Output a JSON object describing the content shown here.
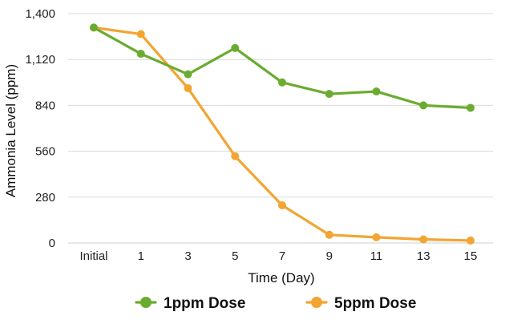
{
  "chart_data": {
    "type": "line",
    "title": "",
    "xlabel": "Time (Day)",
    "ylabel": "Ammonia Level (ppm)",
    "categories": [
      "Initial",
      "1",
      "3",
      "5",
      "7",
      "9",
      "11",
      "13",
      "15"
    ],
    "yticks": [
      "0",
      "280",
      "560",
      "840",
      "1,120",
      "1,400"
    ],
    "ylim": [
      0,
      1400
    ],
    "grid": true,
    "legend_position": "bottom",
    "series": [
      {
        "name": "1ppm Dose",
        "color": "#6aac2f",
        "values": [
          1315,
          1155,
          1030,
          1190,
          980,
          910,
          925,
          840,
          825
        ]
      },
      {
        "name": "5ppm Dose",
        "color": "#f2a531",
        "values": [
          1315,
          1275,
          945,
          530,
          230,
          50,
          35,
          22,
          15
        ]
      }
    ]
  }
}
